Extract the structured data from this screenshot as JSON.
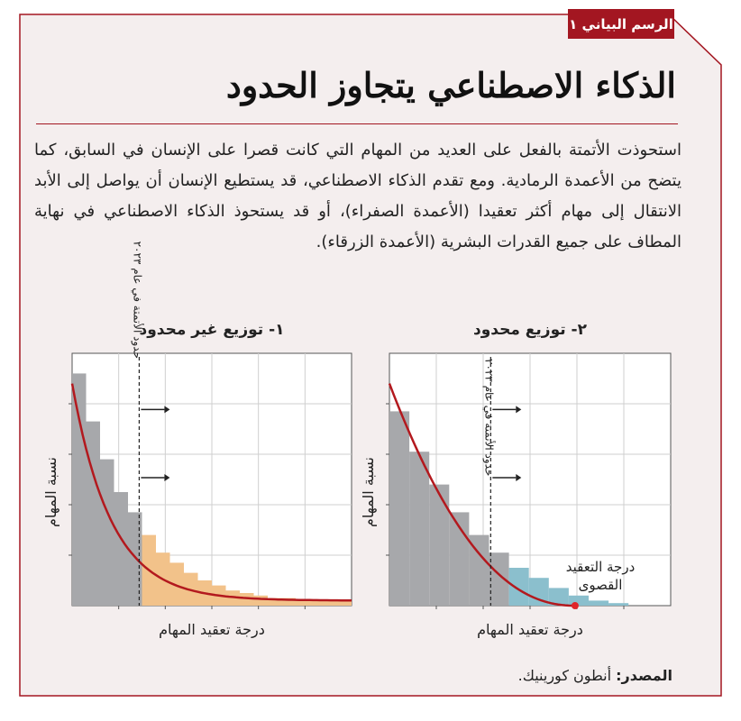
{
  "tag": "الرسم البياني ١",
  "title": "الذكاء الاصطناعي يتجاوز الحدود",
  "body": "استحوذت الأتمتة بالفعل على العديد من المهام التي كانت قصرا على الإنسان في السابق، كما يتضح من الأعمدة الرمادية. ومع تقدم الذكاء الاصطناعي، قد يستطيع الإنسان أن يواصل إلى الأبد الانتقال إلى مهام أكثر تعقيدا (الأعمدة الصفراء)، أو قد يستحوذ الذكاء الاصطناعي في نهاية المطاف على جميع القدرات البشرية (الأعمدة الزرقاء).",
  "source_label": "المصدر:",
  "source_text": "أنطون كورينيك.",
  "colors": {
    "accent": "#a31621",
    "gray_bars": "#a7a8ab",
    "yellow_bars": "#f2c28a",
    "blue_bars": "#8bbfcd",
    "curve": "#b3191e"
  },
  "chart_data": [
    {
      "type": "area",
      "title": "١- توزيع غير محدود",
      "xlabel": "درجة تعقيد المهام",
      "ylabel": "نسبة المهام",
      "annotation": "حدود الأتمتة في عام ٢٠٢٣",
      "distribution": "unbounded",
      "automation_limit": 0.24,
      "bars": [
        {
          "value": 0.92,
          "group": "automated"
        },
        {
          "value": 0.73,
          "group": "automated"
        },
        {
          "value": 0.58,
          "group": "automated"
        },
        {
          "value": 0.45,
          "group": "automated"
        },
        {
          "value": 0.37,
          "group": "automated"
        },
        {
          "value": 0.28,
          "group": "human"
        },
        {
          "value": 0.21,
          "group": "human"
        },
        {
          "value": 0.17,
          "group": "human"
        },
        {
          "value": 0.13,
          "group": "human"
        },
        {
          "value": 0.1,
          "group": "human"
        },
        {
          "value": 0.08,
          "group": "human"
        },
        {
          "value": 0.06,
          "group": "human"
        },
        {
          "value": 0.05,
          "group": "human"
        },
        {
          "value": 0.04,
          "group": "human"
        },
        {
          "value": 0.03,
          "group": "human"
        },
        {
          "value": 0.03,
          "group": "human"
        },
        {
          "value": 0.02,
          "group": "human"
        },
        {
          "value": 0.02,
          "group": "human"
        },
        {
          "value": 0.02,
          "group": "human"
        },
        {
          "value": 0.02,
          "group": "human"
        }
      ],
      "grid": true
    },
    {
      "type": "area",
      "title": "٢- توزيع محدود",
      "xlabel": "درجة تعقيد المهام",
      "ylabel": "نسبة المهام",
      "annotation": "حدود الأتمتة في عام ٢٠٢٣",
      "end_label": [
        "درجة التعقيد",
        "القصوى"
      ],
      "distribution": "bounded",
      "automation_limit": 0.36,
      "bars": [
        {
          "value": 0.77,
          "group": "automated"
        },
        {
          "value": 0.61,
          "group": "automated"
        },
        {
          "value": 0.48,
          "group": "automated"
        },
        {
          "value": 0.37,
          "group": "automated"
        },
        {
          "value": 0.28,
          "group": "automated"
        },
        {
          "value": 0.21,
          "group": "automated"
        },
        {
          "value": 0.15,
          "group": "ai"
        },
        {
          "value": 0.11,
          "group": "ai"
        },
        {
          "value": 0.07,
          "group": "ai"
        },
        {
          "value": 0.04,
          "group": "ai"
        },
        {
          "value": 0.02,
          "group": "ai"
        },
        {
          "value": 0.01,
          "group": "ai"
        }
      ],
      "grid": true
    }
  ]
}
